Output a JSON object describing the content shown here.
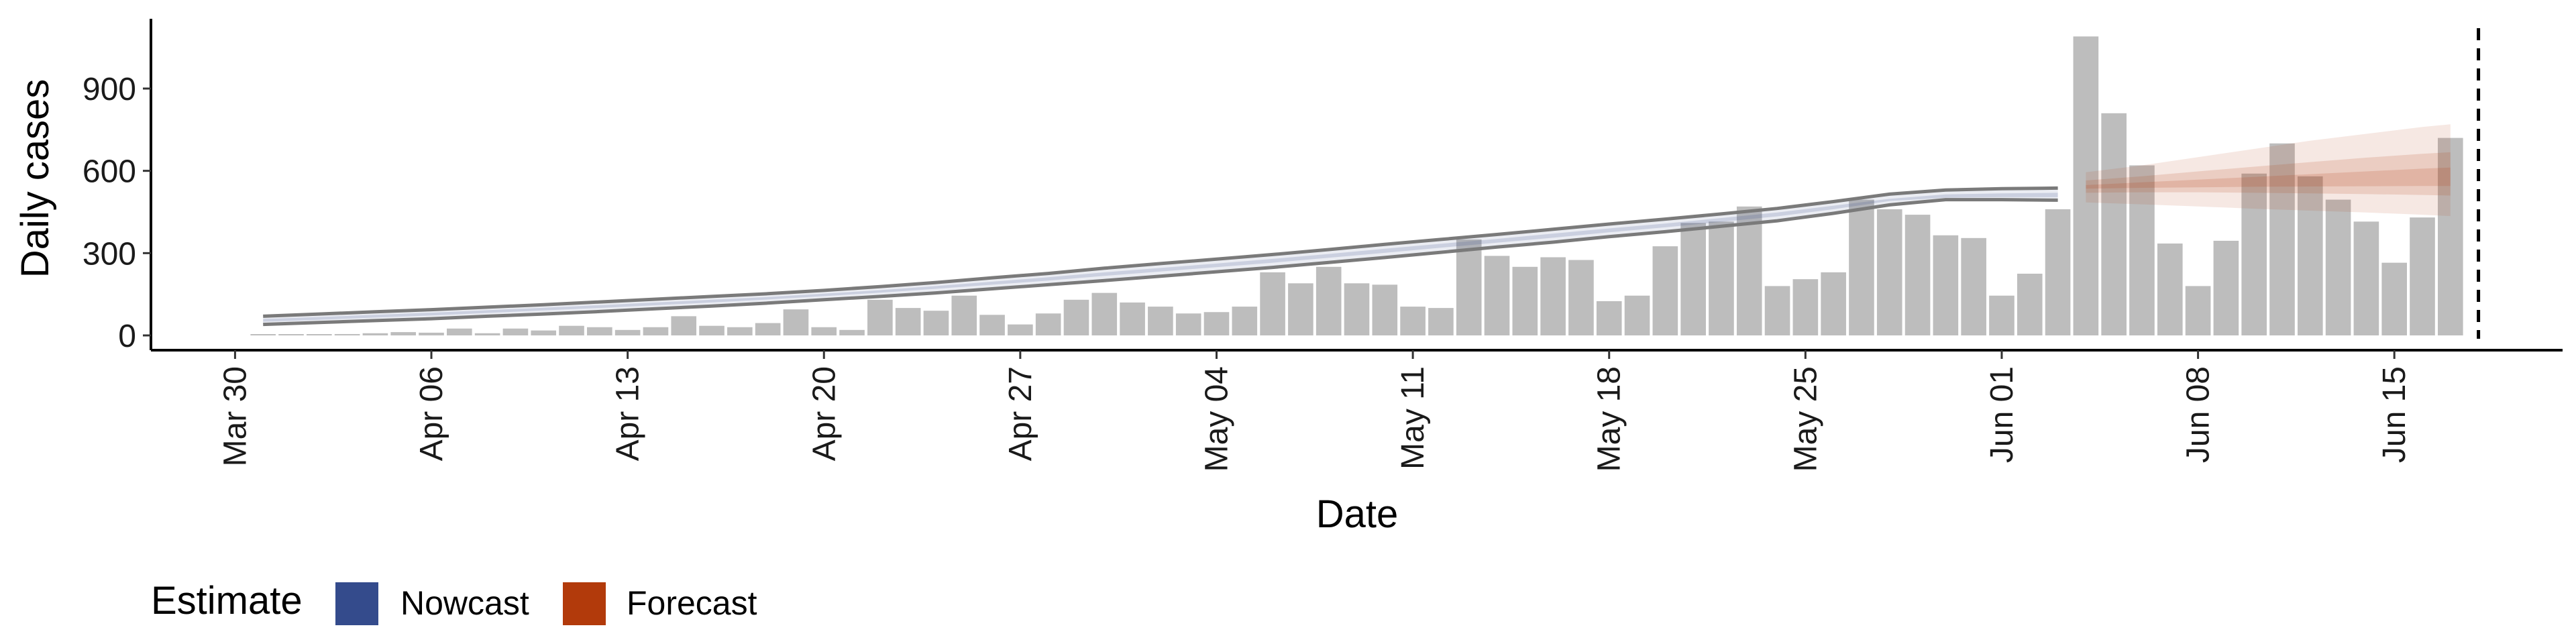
{
  "chart_data": {
    "type": "bar",
    "xlabel": "Date",
    "ylabel": "Daily cases",
    "x_tick_labels": [
      "Mar 30",
      "Apr 06",
      "Apr 13",
      "Apr 20",
      "Apr 27",
      "May 04",
      "May 11",
      "May 18",
      "May 25",
      "Jun 01",
      "Jun 08",
      "Jun 15"
    ],
    "y_ticks": [
      0,
      300,
      600,
      900
    ],
    "ylim": [
      -50,
      1150
    ],
    "xlim": [
      "2020-03-27",
      "2020-06-21"
    ],
    "grid": false,
    "dates": [
      "2020-03-31",
      "2020-04-01",
      "2020-04-02",
      "2020-04-03",
      "2020-04-04",
      "2020-04-05",
      "2020-04-06",
      "2020-04-07",
      "2020-04-08",
      "2020-04-09",
      "2020-04-10",
      "2020-04-11",
      "2020-04-12",
      "2020-04-13",
      "2020-04-14",
      "2020-04-15",
      "2020-04-16",
      "2020-04-17",
      "2020-04-18",
      "2020-04-19",
      "2020-04-20",
      "2020-04-21",
      "2020-04-22",
      "2020-04-23",
      "2020-04-24",
      "2020-04-25",
      "2020-04-26",
      "2020-04-27",
      "2020-04-28",
      "2020-04-29",
      "2020-04-30",
      "2020-05-01",
      "2020-05-02",
      "2020-05-03",
      "2020-05-04",
      "2020-05-05",
      "2020-05-06",
      "2020-05-07",
      "2020-05-08",
      "2020-05-09",
      "2020-05-10",
      "2020-05-11",
      "2020-05-12",
      "2020-05-13",
      "2020-05-14",
      "2020-05-15",
      "2020-05-16",
      "2020-05-17",
      "2020-05-18",
      "2020-05-19",
      "2020-05-20",
      "2020-05-21",
      "2020-05-22",
      "2020-05-23",
      "2020-05-24",
      "2020-05-25",
      "2020-05-26",
      "2020-05-27",
      "2020-05-28",
      "2020-05-29",
      "2020-05-30",
      "2020-05-31",
      "2020-06-01",
      "2020-06-02",
      "2020-06-03",
      "2020-06-04",
      "2020-06-05",
      "2020-06-06",
      "2020-06-07",
      "2020-06-08",
      "2020-06-09",
      "2020-06-10",
      "2020-06-11",
      "2020-06-12",
      "2020-06-13",
      "2020-06-14",
      "2020-06-15",
      "2020-06-16",
      "2020-06-17",
      "2020-06-18"
    ],
    "values": [
      2,
      1,
      3,
      5,
      8,
      12,
      10,
      25,
      8,
      25,
      18,
      35,
      30,
      20,
      30,
      70,
      35,
      30,
      45,
      95,
      30,
      20,
      130,
      100,
      90,
      145,
      75,
      40,
      80,
      130,
      155,
      120,
      105,
      80,
      85,
      105,
      230,
      190,
      250,
      190,
      185,
      105,
      100,
      350,
      290,
      250,
      285,
      275,
      125,
      145,
      325,
      410,
      415,
      470,
      180,
      205,
      230,
      495,
      460,
      440,
      365,
      355,
      145,
      225,
      460,
      1090,
      810,
      620,
      335,
      180,
      345,
      590,
      700,
      580,
      495,
      415,
      265,
      430,
      720,
      0
    ],
    "nowcast": {
      "dates": [
        "2020-03-31",
        "2020-04-02",
        "2020-04-04",
        "2020-04-06",
        "2020-04-08",
        "2020-04-10",
        "2020-04-12",
        "2020-04-14",
        "2020-04-16",
        "2020-04-18",
        "2020-04-20",
        "2020-04-22",
        "2020-04-24",
        "2020-04-26",
        "2020-04-28",
        "2020-04-30",
        "2020-05-02",
        "2020-05-04",
        "2020-05-06",
        "2020-05-08",
        "2020-05-10",
        "2020-05-12",
        "2020-05-14",
        "2020-05-16",
        "2020-05-18",
        "2020-05-20",
        "2020-05-22",
        "2020-05-24",
        "2020-05-26",
        "2020-05-28",
        "2020-05-30",
        "2020-06-01",
        "2020-06-03"
      ],
      "upper_90": [
        70,
        78,
        86,
        94,
        103,
        112,
        122,
        132,
        142,
        152,
        164,
        178,
        193,
        210,
        226,
        245,
        262,
        278,
        295,
        313,
        332,
        350,
        368,
        387,
        406,
        424,
        443,
        463,
        488,
        515,
        530,
        535,
        537
      ],
      "lower_90": [
        40,
        47,
        54,
        61,
        70,
        78,
        87,
        97,
        107,
        118,
        130,
        142,
        155,
        170,
        185,
        200,
        216,
        232,
        248,
        266,
        284,
        303,
        322,
        340,
        360,
        378,
        398,
        418,
        445,
        476,
        495,
        495,
        493
      ],
      "upper_50": [
        60,
        67,
        75,
        83,
        92,
        101,
        110,
        120,
        130,
        140,
        152,
        165,
        180,
        196,
        212,
        230,
        246,
        262,
        279,
        297,
        316,
        334,
        352,
        371,
        390,
        408,
        428,
        448,
        473,
        498,
        514,
        518,
        520
      ],
      "lower_50": [
        50,
        57,
        65,
        73,
        82,
        91,
        100,
        110,
        120,
        131,
        143,
        156,
        170,
        185,
        200,
        217,
        233,
        249,
        265,
        283,
        301,
        320,
        338,
        356,
        376,
        394,
        414,
        434,
        460,
        490,
        502,
        504,
        504
      ]
    },
    "forecast": {
      "dates": [
        "2020-06-04",
        "2020-06-06",
        "2020-06-08",
        "2020-06-10",
        "2020-06-12",
        "2020-06-14",
        "2020-06-16",
        "2020-06-17"
      ],
      "upper_90": [
        595,
        620,
        650,
        680,
        710,
        735,
        760,
        770
      ],
      "lower_90": [
        485,
        478,
        470,
        462,
        455,
        448,
        440,
        435
      ],
      "upper_50": [
        565,
        580,
        598,
        615,
        632,
        648,
        662,
        668
      ],
      "lower_50": [
        520,
        522,
        522,
        520,
        518,
        515,
        512,
        510
      ],
      "upper_20": [
        548,
        558,
        568,
        578,
        588,
        598,
        608,
        612
      ],
      "lower_20": [
        535,
        538,
        540,
        542,
        543,
        544,
        545,
        545
      ]
    },
    "reference_line": "2020-06-18",
    "colors": {
      "bars": "#bdbdbd",
      "nowcast": "#3c4f8a",
      "forecast": "#b5451b",
      "outline": "#7a7a7a",
      "reference": "#000000"
    },
    "legend": {
      "title": "Estimate",
      "placement": "bottom-left",
      "entries": [
        {
          "label": "Nowcast",
          "color": "#344b8c"
        },
        {
          "label": "Forecast",
          "color": "#b23a0b"
        }
      ]
    }
  }
}
